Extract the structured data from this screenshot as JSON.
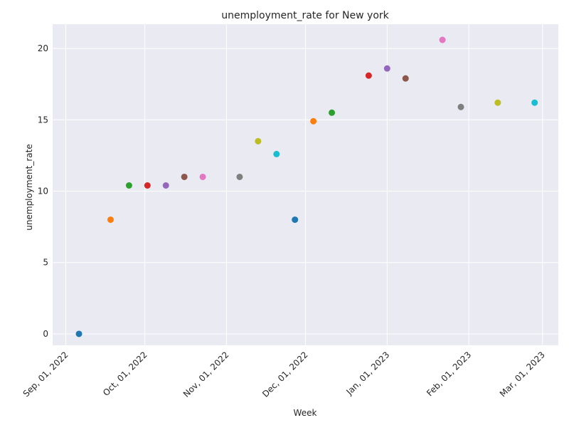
{
  "chart_data": {
    "type": "scatter",
    "title": "unemployment_rate for New york",
    "xlabel": "Week",
    "ylabel": "unemployment_rate",
    "x_axis_type": "date",
    "xlim": [
      "2022-08-27",
      "2023-03-07"
    ],
    "ylim": [
      -0.8,
      21.7
    ],
    "x_ticks": [
      {
        "date": "2022-09-01",
        "label": "Sep, 01, 2022"
      },
      {
        "date": "2022-10-01",
        "label": "Oct, 01, 2022"
      },
      {
        "date": "2022-11-01",
        "label": "Nov, 01, 2022"
      },
      {
        "date": "2022-12-01",
        "label": "Dec, 01, 2022"
      },
      {
        "date": "2023-01-01",
        "label": "Jan, 01, 2023"
      },
      {
        "date": "2023-02-01",
        "label": "Feb, 01, 2023"
      },
      {
        "date": "2023-03-01",
        "label": "Mar, 01, 2023"
      }
    ],
    "y_ticks": [
      0,
      5,
      10,
      15,
      20
    ],
    "grid": true,
    "points": [
      {
        "x": "2022-09-06",
        "y": 0.0,
        "color": "#1f77b4"
      },
      {
        "x": "2022-09-18",
        "y": 8.0,
        "color": "#ff7f0e"
      },
      {
        "x": "2022-09-25",
        "y": 10.4,
        "color": "#2ca02c"
      },
      {
        "x": "2022-10-02",
        "y": 10.4,
        "color": "#d62728"
      },
      {
        "x": "2022-10-09",
        "y": 10.4,
        "color": "#9467bd"
      },
      {
        "x": "2022-10-16",
        "y": 11.0,
        "color": "#8c564b"
      },
      {
        "x": "2022-10-23",
        "y": 11.0,
        "color": "#e377c2"
      },
      {
        "x": "2022-11-06",
        "y": 11.0,
        "color": "#7f7f7f"
      },
      {
        "x": "2022-11-13",
        "y": 13.5,
        "color": "#bcbd22"
      },
      {
        "x": "2022-11-20",
        "y": 12.6,
        "color": "#17becf"
      },
      {
        "x": "2022-11-27",
        "y": 8.0,
        "color": "#1f77b4"
      },
      {
        "x": "2022-12-04",
        "y": 14.9,
        "color": "#ff7f0e"
      },
      {
        "x": "2022-12-11",
        "y": 15.5,
        "color": "#2ca02c"
      },
      {
        "x": "2022-12-25",
        "y": 18.1,
        "color": "#d62728"
      },
      {
        "x": "2023-01-01",
        "y": 18.6,
        "color": "#9467bd"
      },
      {
        "x": "2023-01-08",
        "y": 17.9,
        "color": "#8c564b"
      },
      {
        "x": "2023-01-22",
        "y": 20.6,
        "color": "#e377c2"
      },
      {
        "x": "2023-01-29",
        "y": 15.9,
        "color": "#7f7f7f"
      },
      {
        "x": "2023-02-12",
        "y": 16.2,
        "color": "#bcbd22"
      },
      {
        "x": "2023-02-26",
        "y": 16.2,
        "color": "#17becf"
      }
    ]
  },
  "style": {
    "plot_background": "#eaeaf2",
    "grid_color": "#ffffff"
  }
}
